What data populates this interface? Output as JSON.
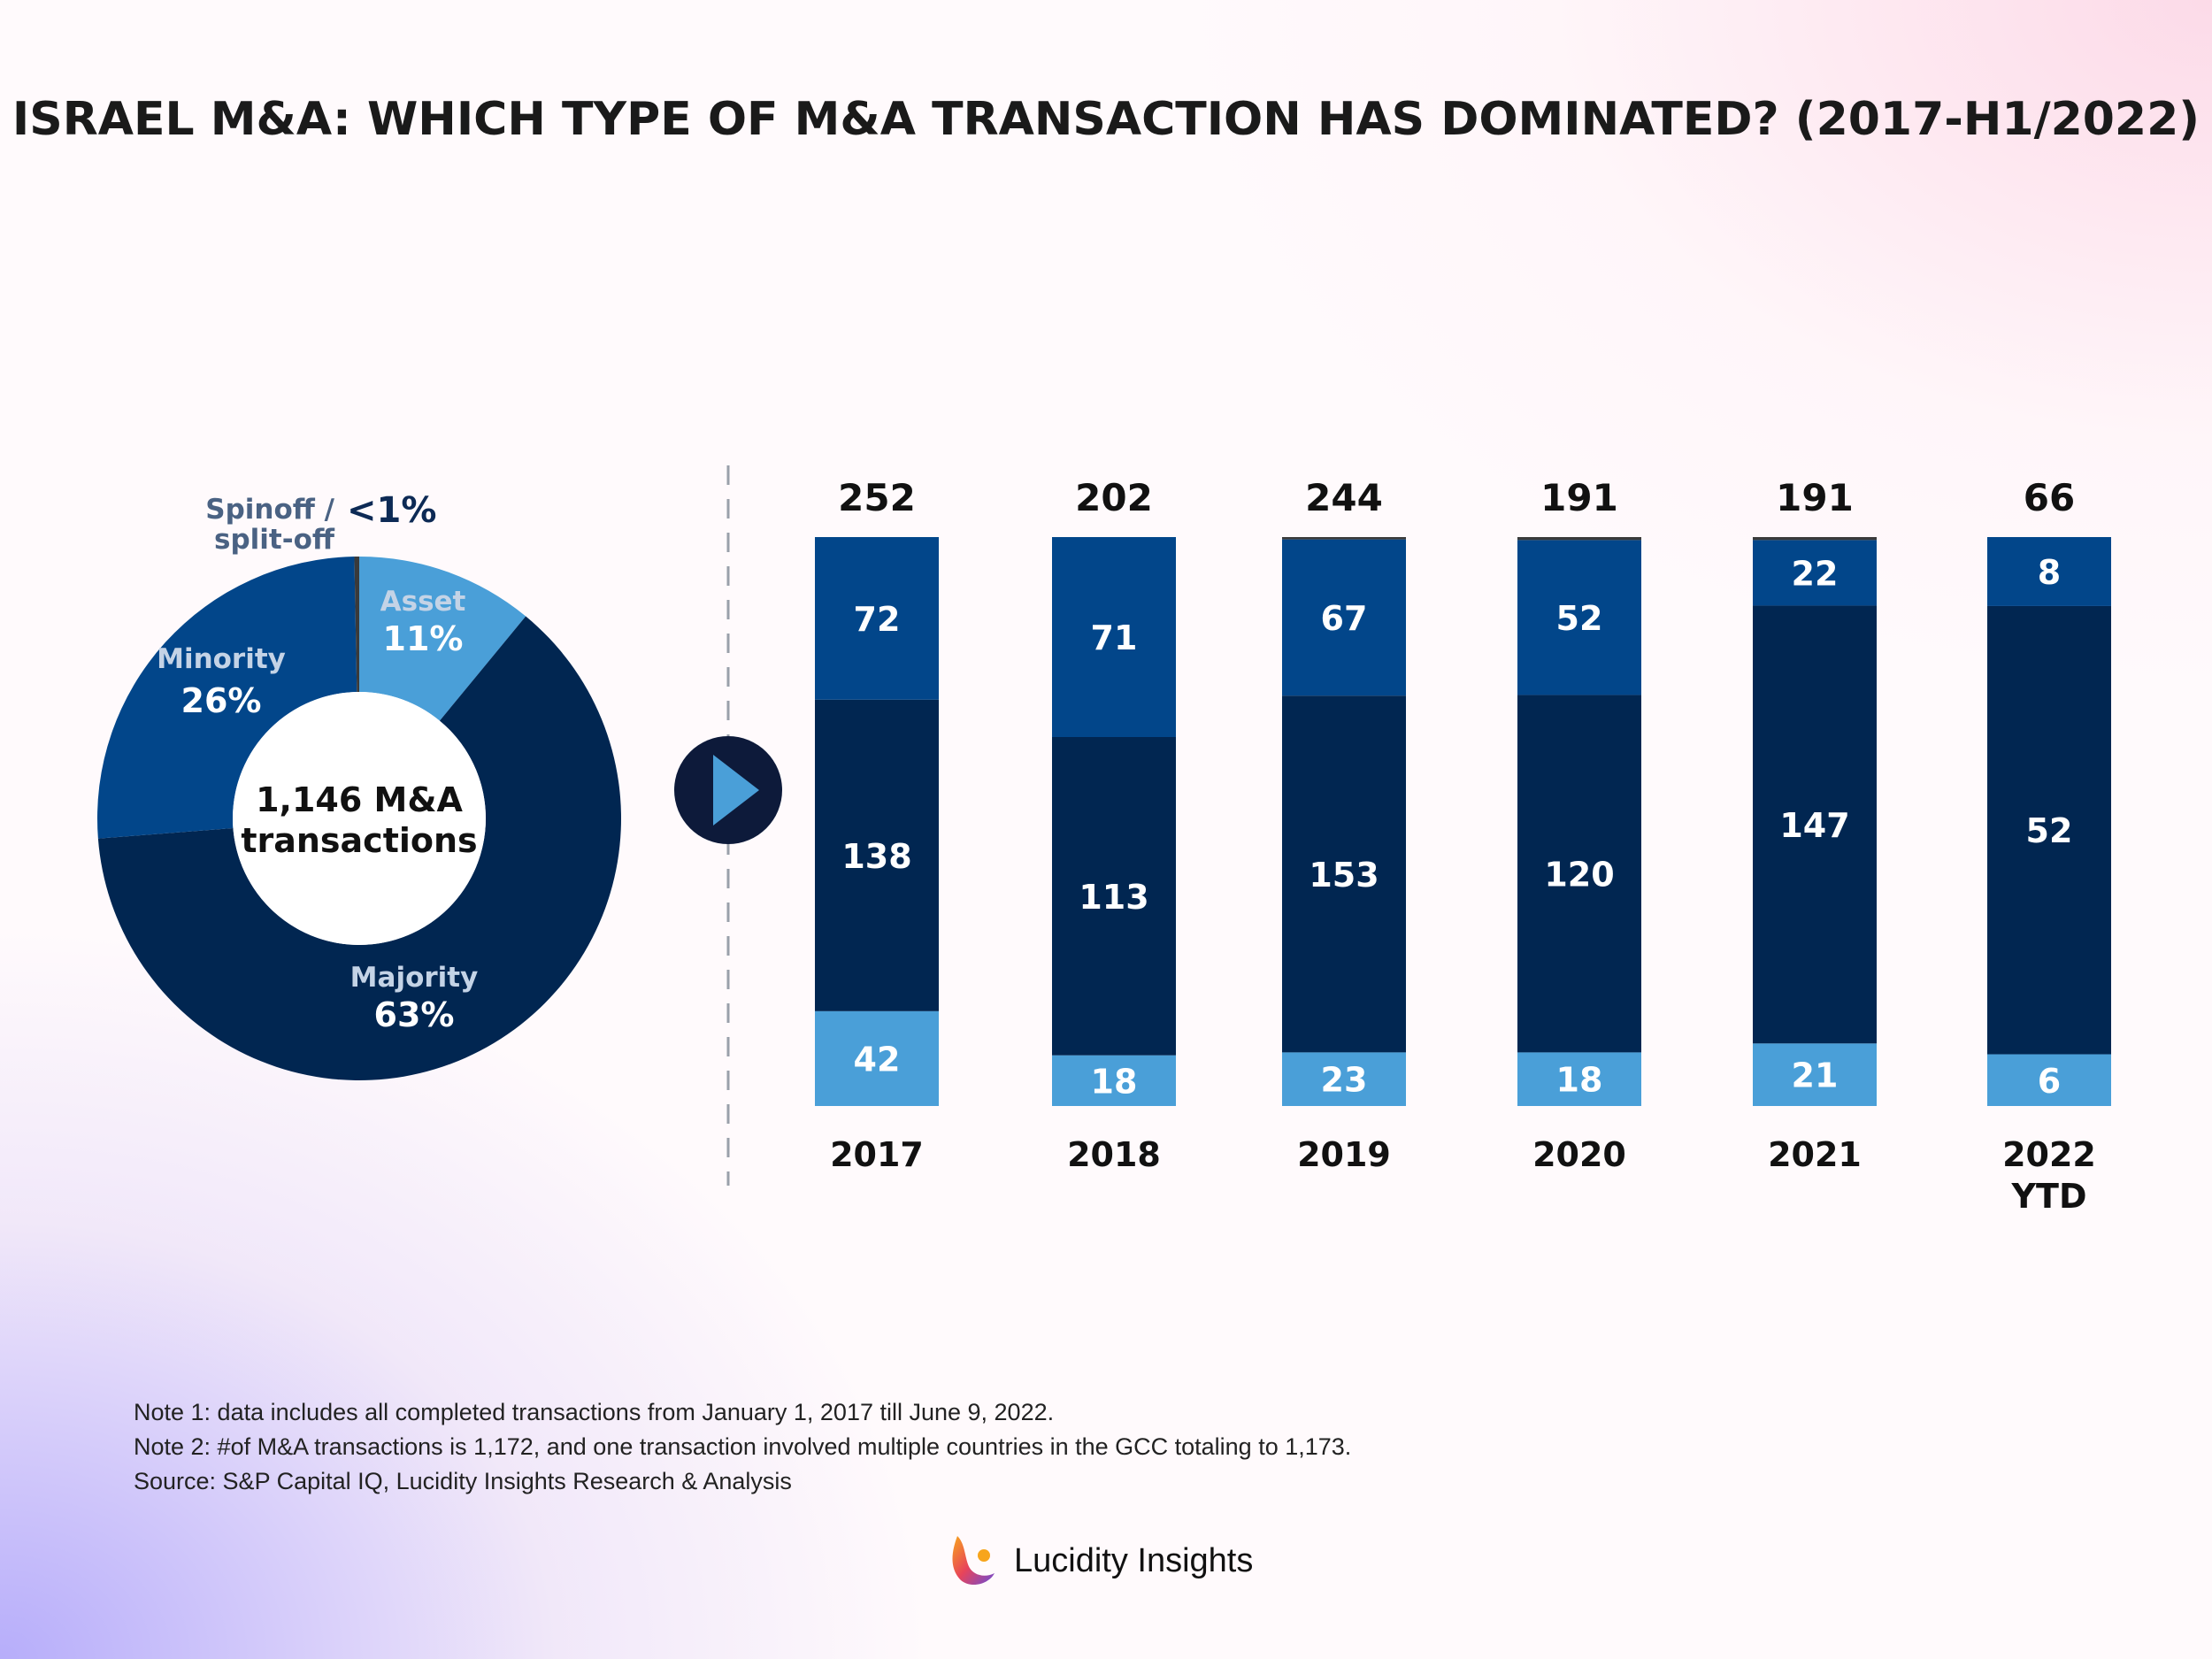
{
  "title": "ISRAEL M&A: WHICH TYPE OF M&A TRANSACTION HAS DOMINATED? (2017-H1/2022)",
  "colors": {
    "asset": "#4a9fd8",
    "minority": "#02468a",
    "majority": "#012651",
    "spinoff": "#3a3a3a",
    "play_circle": "#0d1a3a"
  },
  "chart_data": [
    {
      "type": "pie",
      "style": "donut",
      "center_label": [
        "1,146 M&A",
        "transactions"
      ],
      "slices": [
        {
          "name": "Asset",
          "value": 11,
          "label": "11%"
        },
        {
          "name": "Majority",
          "value": 63,
          "label": "63%"
        },
        {
          "name": "Minority",
          "value": 26,
          "label": "26%"
        },
        {
          "name": "Spinoff / split-off",
          "value": 0.3,
          "label": "<1%"
        }
      ],
      "spinoff_label_lines": [
        "Spinoff /",
        "split-off"
      ]
    },
    {
      "type": "bar",
      "stacked": true,
      "normalized": true,
      "categories": [
        "2017",
        "2018",
        "2019",
        "2020",
        "2021",
        "2022 YTD"
      ],
      "category_lines": [
        [
          "2017"
        ],
        [
          "2018"
        ],
        [
          "2019"
        ],
        [
          "2020"
        ],
        [
          "2021"
        ],
        [
          "2022",
          "YTD"
        ]
      ],
      "totals": [
        "252",
        "202",
        "244",
        "191",
        "191",
        "66"
      ],
      "series": [
        {
          "name": "Asset",
          "values": [
            42,
            18,
            23,
            18,
            21,
            6
          ]
        },
        {
          "name": "Majority",
          "values": [
            138,
            113,
            153,
            120,
            147,
            52
          ]
        },
        {
          "name": "Minority",
          "values": [
            72,
            71,
            67,
            52,
            22,
            8
          ]
        },
        {
          "name": "Spinoff / split-off",
          "values": [
            0,
            0,
            1,
            1,
            1,
            0
          ]
        }
      ]
    }
  ],
  "notes": [
    "Note 1: data includes all completed transactions from January 1, 2017 till June 9, 2022.",
    "Note 2: #of M&A transactions is 1,172, and one transaction involved multiple countries in the GCC totaling to 1,173.",
    "Source: S&P Capital IQ, Lucidity Insights Research & Analysis"
  ],
  "logo": {
    "text": "Lucidity Insights"
  }
}
